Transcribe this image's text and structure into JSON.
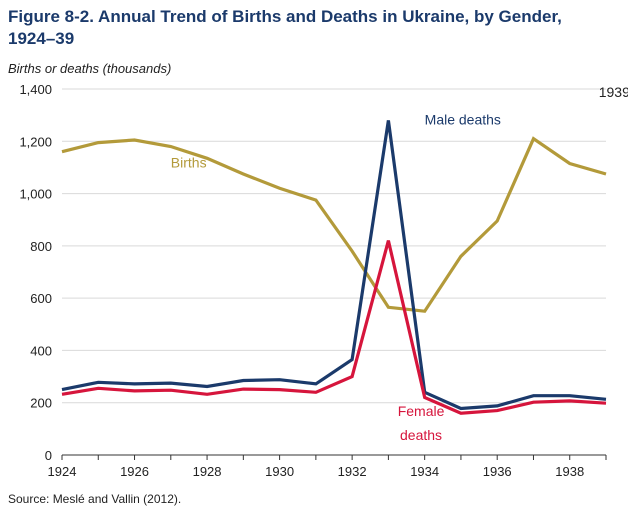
{
  "title_lines": [
    "Figure 8-2. Annual Trend of Births and Deaths in Ukraine, by Gender,",
    "1924–39"
  ],
  "source": "Source: Meslé and Vallin (2012).",
  "colors": {
    "title": "#1b3a6b",
    "births": "#b39a3a",
    "male": "#1b3a6b",
    "female": "#d6153c",
    "grid": "#d9d9d9"
  },
  "chart_data": {
    "type": "line",
    "title": "Figure 8-2. Annual Trend of Births and Deaths in Ukraine, by Gender, 1924–39",
    "ylabel": "Births or deaths (thousands)",
    "xlabel": "",
    "ylim": [
      0,
      1400
    ],
    "xlim": [
      1924,
      1939
    ],
    "grid": true,
    "yticks": [
      0,
      200,
      400,
      600,
      800,
      1000,
      1200,
      1400
    ],
    "ytick_labels": [
      "0",
      "200",
      "400",
      "600",
      "800",
      "1,000",
      "1,200",
      "1,400"
    ],
    "xticks": [
      1924,
      1926,
      1928,
      1930,
      1932,
      1934,
      1936,
      1938
    ],
    "xtick_labels": [
      "1924",
      "1926",
      "1928",
      "1930",
      "1932",
      "1934",
      "1936",
      "1938"
    ],
    "x": [
      1924,
      1925,
      1926,
      1927,
      1928,
      1929,
      1930,
      1931,
      1932,
      1933,
      1934,
      1935,
      1936,
      1937,
      1938,
      1939
    ],
    "series": [
      {
        "name": "Births",
        "color": "#b39a3a",
        "values": [
          1160,
          1195,
          1205,
          1180,
          1135,
          1075,
          1020,
          975,
          780,
          565,
          550,
          760,
          895,
          1210,
          1115,
          1075
        ]
      },
      {
        "name": "Male deaths",
        "color": "#1b3a6b",
        "values": [
          250,
          278,
          272,
          275,
          262,
          285,
          288,
          272,
          365,
          1280,
          240,
          178,
          188,
          227,
          227,
          213
        ]
      },
      {
        "name": "Female deaths",
        "color": "#d6153c",
        "values": [
          232,
          255,
          245,
          248,
          232,
          252,
          250,
          240,
          300,
          820,
          220,
          160,
          170,
          202,
          207,
          198
        ]
      }
    ],
    "annotations": [
      {
        "text": "1939",
        "x": 1938.8,
        "y": 1370
      },
      {
        "text": "Male deaths",
        "x": 1934.0,
        "y": 1265,
        "color": "#1b3a6b"
      },
      {
        "text": "Births",
        "x": 1927.0,
        "y": 1100,
        "color": "#b39a3a"
      },
      {
        "text": "Female",
        "x": 1933.9,
        "y": 150,
        "color": "#d6153c"
      },
      {
        "text": "deaths",
        "x": 1933.9,
        "y": 58,
        "color": "#d6153c"
      }
    ]
  }
}
